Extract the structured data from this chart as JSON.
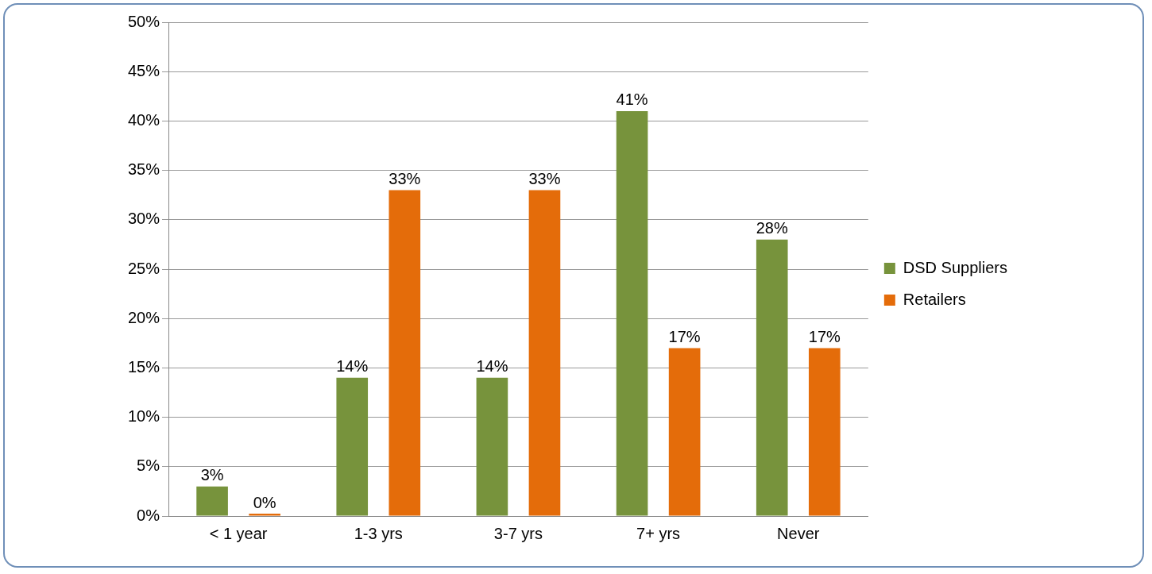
{
  "chart_data": {
    "type": "bar",
    "categories": [
      "< 1 year",
      "1-3 yrs",
      "3-7 yrs",
      "7+ yrs",
      "Never"
    ],
    "series": [
      {
        "name": "DSD Suppliers",
        "color": "#77933c",
        "values": [
          3,
          14,
          14,
          41,
          28
        ],
        "value_labels": [
          "3%",
          "14%",
          "14%",
          "41%",
          "28%"
        ]
      },
      {
        "name": "Retailers",
        "color": "#e46c0a",
        "values": [
          0,
          33,
          33,
          17,
          17
        ],
        "value_labels": [
          "0%",
          "33%",
          "33%",
          "17%",
          "17%"
        ]
      }
    ],
    "ylim": [
      0,
      50
    ],
    "yticks": [
      {
        "value": 0,
        "label": "0%"
      },
      {
        "value": 5,
        "label": "5%"
      },
      {
        "value": 10,
        "label": "10%"
      },
      {
        "value": 15,
        "label": "15%"
      },
      {
        "value": 20,
        "label": "20%"
      },
      {
        "value": 25,
        "label": "25%"
      },
      {
        "value": 30,
        "label": "30%"
      },
      {
        "value": 35,
        "label": "35%"
      },
      {
        "value": 40,
        "label": "40%"
      },
      {
        "value": 45,
        "label": "45%"
      },
      {
        "value": 50,
        "label": "50%"
      }
    ],
    "grid": "y",
    "legend": "right"
  }
}
